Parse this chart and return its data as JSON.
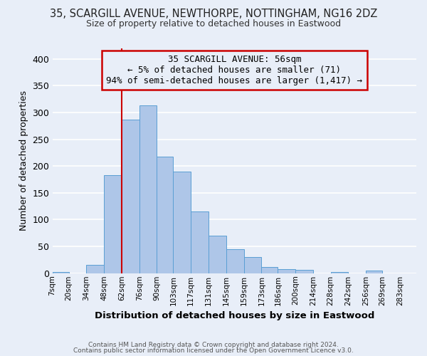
{
  "title": "35, SCARGILL AVENUE, NEWTHORPE, NOTTINGHAM, NG16 2DZ",
  "subtitle": "Size of property relative to detached houses in Eastwood",
  "xlabel": "Distribution of detached houses by size in Eastwood",
  "ylabel": "Number of detached properties",
  "bin_labels": [
    "7sqm",
    "20sqm",
    "34sqm",
    "48sqm",
    "62sqm",
    "76sqm",
    "90sqm",
    "103sqm",
    "117sqm",
    "131sqm",
    "145sqm",
    "159sqm",
    "173sqm",
    "186sqm",
    "200sqm",
    "214sqm",
    "228sqm",
    "242sqm",
    "256sqm",
    "269sqm",
    "283sqm"
  ],
  "bar_heights": [
    2,
    0,
    16,
    183,
    286,
    313,
    217,
    190,
    115,
    70,
    45,
    30,
    12,
    8,
    6,
    0,
    2,
    0,
    5,
    0,
    0
  ],
  "bar_color": "#aec6e8",
  "bar_edge_color": "#5a9fd4",
  "ylim": [
    0,
    420
  ],
  "yticks": [
    0,
    50,
    100,
    150,
    200,
    250,
    300,
    350,
    400
  ],
  "annotation_box_text": "35 SCARGILL AVENUE: 56sqm\n← 5% of detached houses are smaller (71)\n94% of semi-detached houses are larger (1,417) →",
  "vline_x": 62,
  "vline_color": "#cc0000",
  "box_color": "#cc0000",
  "footer1": "Contains HM Land Registry data © Crown copyright and database right 2024.",
  "footer2": "Contains public sector information licensed under the Open Government Licence v3.0.",
  "bg_color": "#e8eef8",
  "grid_color": "#ffffff",
  "bin_edges": [
    7,
    20,
    34,
    48,
    62,
    76,
    90,
    103,
    117,
    131,
    145,
    159,
    173,
    186,
    200,
    214,
    228,
    242,
    256,
    269,
    283,
    296
  ]
}
